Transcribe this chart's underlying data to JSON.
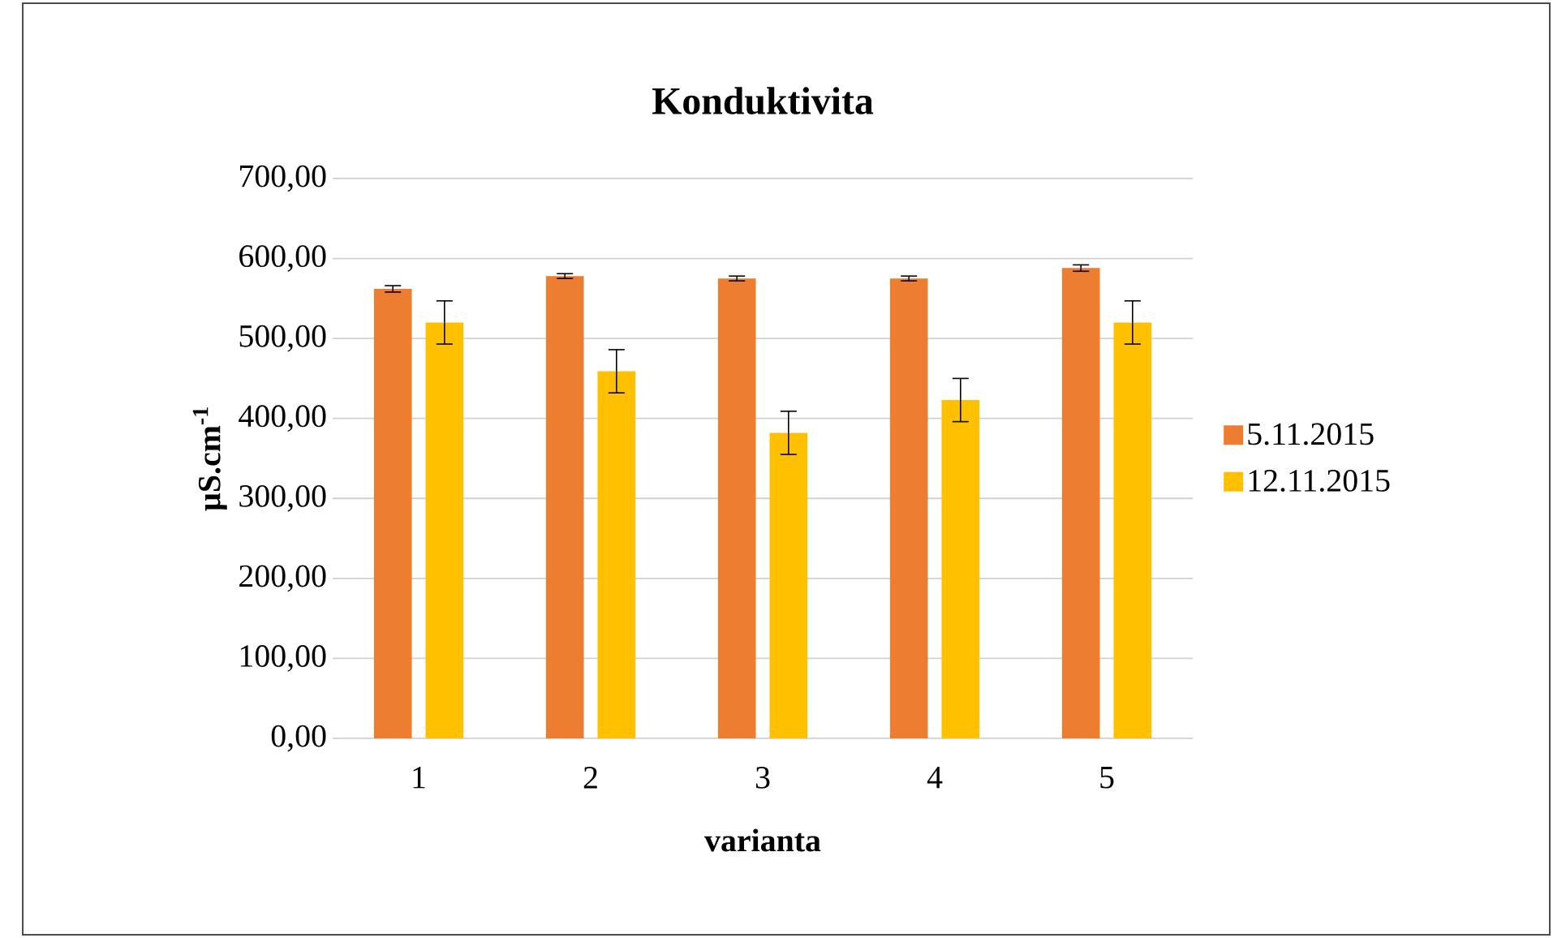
{
  "chart_data": {
    "type": "bar",
    "title": "Konduktivita",
    "xlabel": "varianta",
    "ylabel": "µS.cm$^{-1}$",
    "categories": [
      "1",
      "2",
      "3",
      "4",
      "5"
    ],
    "series": [
      {
        "name": "5.11.2015",
        "color": "#ed7d31",
        "values": [
          562,
          578,
          575,
          575,
          588
        ],
        "errors": [
          4,
          3,
          3,
          3,
          4
        ]
      },
      {
        "name": "12.11.2015",
        "color": "#ffc000",
        "values": [
          520,
          459,
          382,
          423,
          520
        ],
        "errors": [
          27,
          27,
          27,
          27,
          27
        ]
      }
    ],
    "ylim": [
      0,
      700
    ],
    "yticks": [
      {
        "value": 0,
        "label": "0,00"
      },
      {
        "value": 100,
        "label": "100,00"
      },
      {
        "value": 200,
        "label": "200,00"
      },
      {
        "value": 300,
        "label": "300,00"
      },
      {
        "value": 400,
        "label": "400,00"
      },
      {
        "value": 500,
        "label": "500,00"
      },
      {
        "value": 600,
        "label": "600,00"
      },
      {
        "value": 700,
        "label": "700,00"
      }
    ],
    "grid": "y",
    "legend": "right"
  }
}
